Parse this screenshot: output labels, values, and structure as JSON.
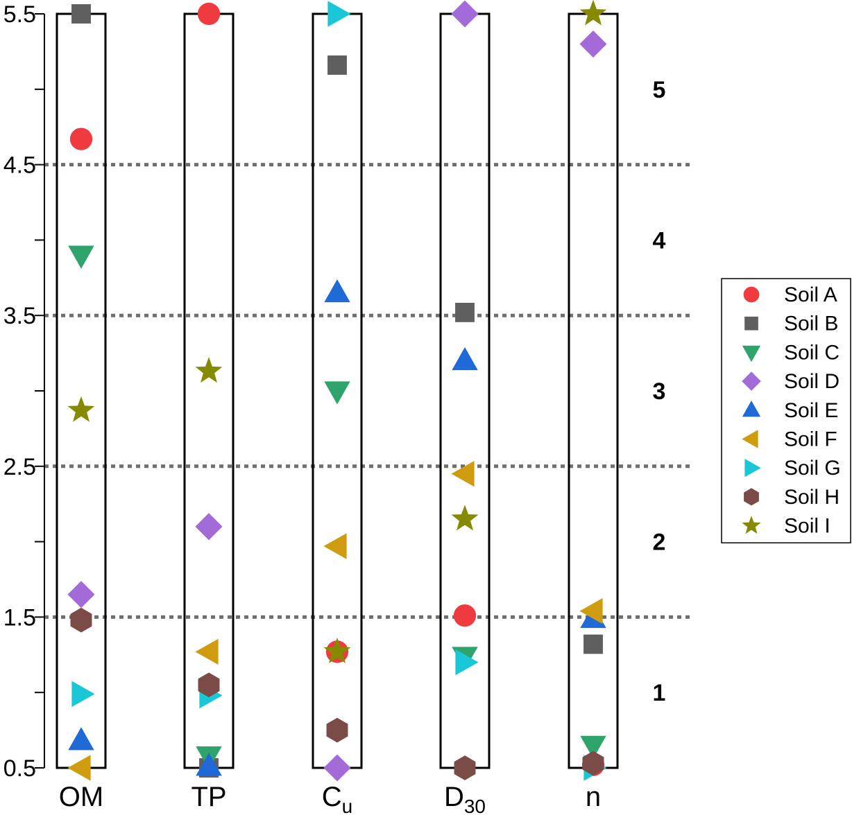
{
  "chart_data": {
    "type": "scatter",
    "title": "",
    "xlabel": "",
    "ylabel": "",
    "ylim": [
      0.5,
      5.5
    ],
    "yticks": [
      0.5,
      1,
      1.5,
      2,
      2.5,
      3,
      3.5,
      4,
      4.5,
      5,
      5.5
    ],
    "ytick_labels": [
      "0.5",
      "1.5",
      "2.5",
      "3.5",
      "4.5",
      "5.5"
    ],
    "categories": [
      {
        "key": "OM",
        "text": "OM",
        "sub": ""
      },
      {
        "key": "TP",
        "text": "TP",
        "sub": ""
      },
      {
        "key": "Cu",
        "text": "C",
        "sub": "u"
      },
      {
        "key": "D30",
        "text": "D",
        "sub": "30"
      },
      {
        "key": "n",
        "text": "n",
        "sub": ""
      }
    ],
    "dashed_lines": [
      1.5,
      2.5,
      3.5,
      4.5
    ],
    "zone_labels": [
      {
        "text": "1",
        "y": 1.0
      },
      {
        "text": "2",
        "y": 2.0
      },
      {
        "text": "3",
        "y": 3.0
      },
      {
        "text": "4",
        "y": 4.0
      },
      {
        "text": "5",
        "y": 5.0
      }
    ],
    "legend_position": "right",
    "series": [
      {
        "name": "Soil A",
        "marker": "circle",
        "color": "#ef3b3f",
        "values": {
          "OM": 4.67,
          "TP": 5.5,
          "Cu": 1.27,
          "D30": 1.51,
          "n": 0.52
        }
      },
      {
        "name": "Soil B",
        "marker": "square",
        "color": "#5f5f5f",
        "values": {
          "OM": 5.5,
          "TP": 0.5,
          "Cu": 5.16,
          "D30": 3.52,
          "n": 1.32
        }
      },
      {
        "name": "Soil C",
        "marker": "triangle-down",
        "color": "#2ea46c",
        "values": {
          "OM": 3.9,
          "TP": 0.58,
          "Cu": 3.0,
          "D30": 1.24,
          "n": 0.65
        }
      },
      {
        "name": "Soil D",
        "marker": "diamond",
        "color": "#a36bd8",
        "values": {
          "OM": 1.65,
          "TP": 2.1,
          "Cu": 0.5,
          "D30": 5.5,
          "n": 5.3
        }
      },
      {
        "name": "Soil E",
        "marker": "triangle-up",
        "color": "#1f6ad6",
        "values": {
          "OM": 0.68,
          "TP": 0.51,
          "Cu": 3.65,
          "D30": 3.2,
          "n": 1.49
        }
      },
      {
        "name": "Soil F",
        "marker": "triangle-left",
        "color": "#cf9b0f",
        "values": {
          "OM": 0.5,
          "TP": 1.27,
          "Cu": 1.97,
          "D30": 2.45,
          "n": 1.54
        }
      },
      {
        "name": "Soil G",
        "marker": "triangle-right",
        "color": "#19c7d6",
        "values": {
          "OM": 0.99,
          "TP": 0.98,
          "Cu": 5.5,
          "D30": 1.2,
          "n": 0.5
        }
      },
      {
        "name": "Soil H",
        "marker": "hexagon",
        "color": "#7b4b48",
        "values": {
          "OM": 1.48,
          "TP": 1.05,
          "Cu": 0.75,
          "D30": 0.5,
          "n": 0.53
        }
      },
      {
        "name": "Soil I",
        "marker": "star",
        "color": "#858a00",
        "values": {
          "OM": 2.87,
          "TP": 3.13,
          "Cu": 1.27,
          "D30": 2.15,
          "n": 5.5
        }
      }
    ]
  }
}
